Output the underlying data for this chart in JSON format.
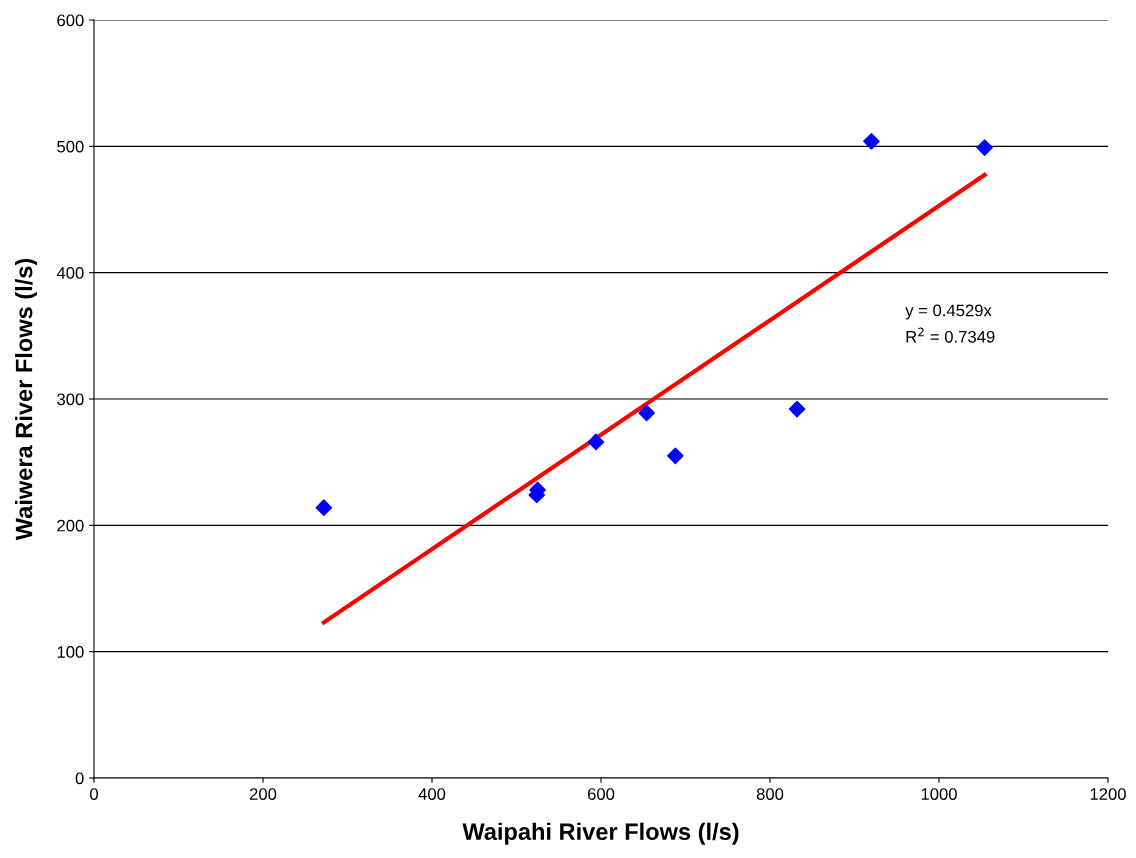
{
  "chart_data": {
    "type": "scatter",
    "xlabel": "Waipahi River Flows (l/s)",
    "ylabel": "Waiwera River Flows (l/s)",
    "x": [
      272,
      524,
      525,
      594,
      654,
      688,
      832,
      920,
      1054
    ],
    "series": [
      {
        "color": "#0000ff",
        "marker": "diamond",
        "values": [
          214,
          224,
          228,
          266,
          289,
          255,
          292,
          504,
          499
        ]
      },
      {
        "type": "line",
        "color": "#ff0000",
        "marker": "none",
        "line_style": "solid",
        "x": [
          272,
          1054
        ],
        "values": [
          123.2,
          477.4
        ]
      }
    ],
    "annotations": [
      "y = 0.4529x",
      "R$^{2}$ = 0.7349"
    ],
    "xlim": [
      0,
      1200
    ],
    "xticks": [
      0,
      200,
      400,
      600,
      800,
      1000,
      1200
    ],
    "ylim": [
      0,
      600
    ],
    "yticks": [
      0,
      100,
      200,
      300,
      400,
      500,
      600
    ],
    "grid": "y"
  }
}
